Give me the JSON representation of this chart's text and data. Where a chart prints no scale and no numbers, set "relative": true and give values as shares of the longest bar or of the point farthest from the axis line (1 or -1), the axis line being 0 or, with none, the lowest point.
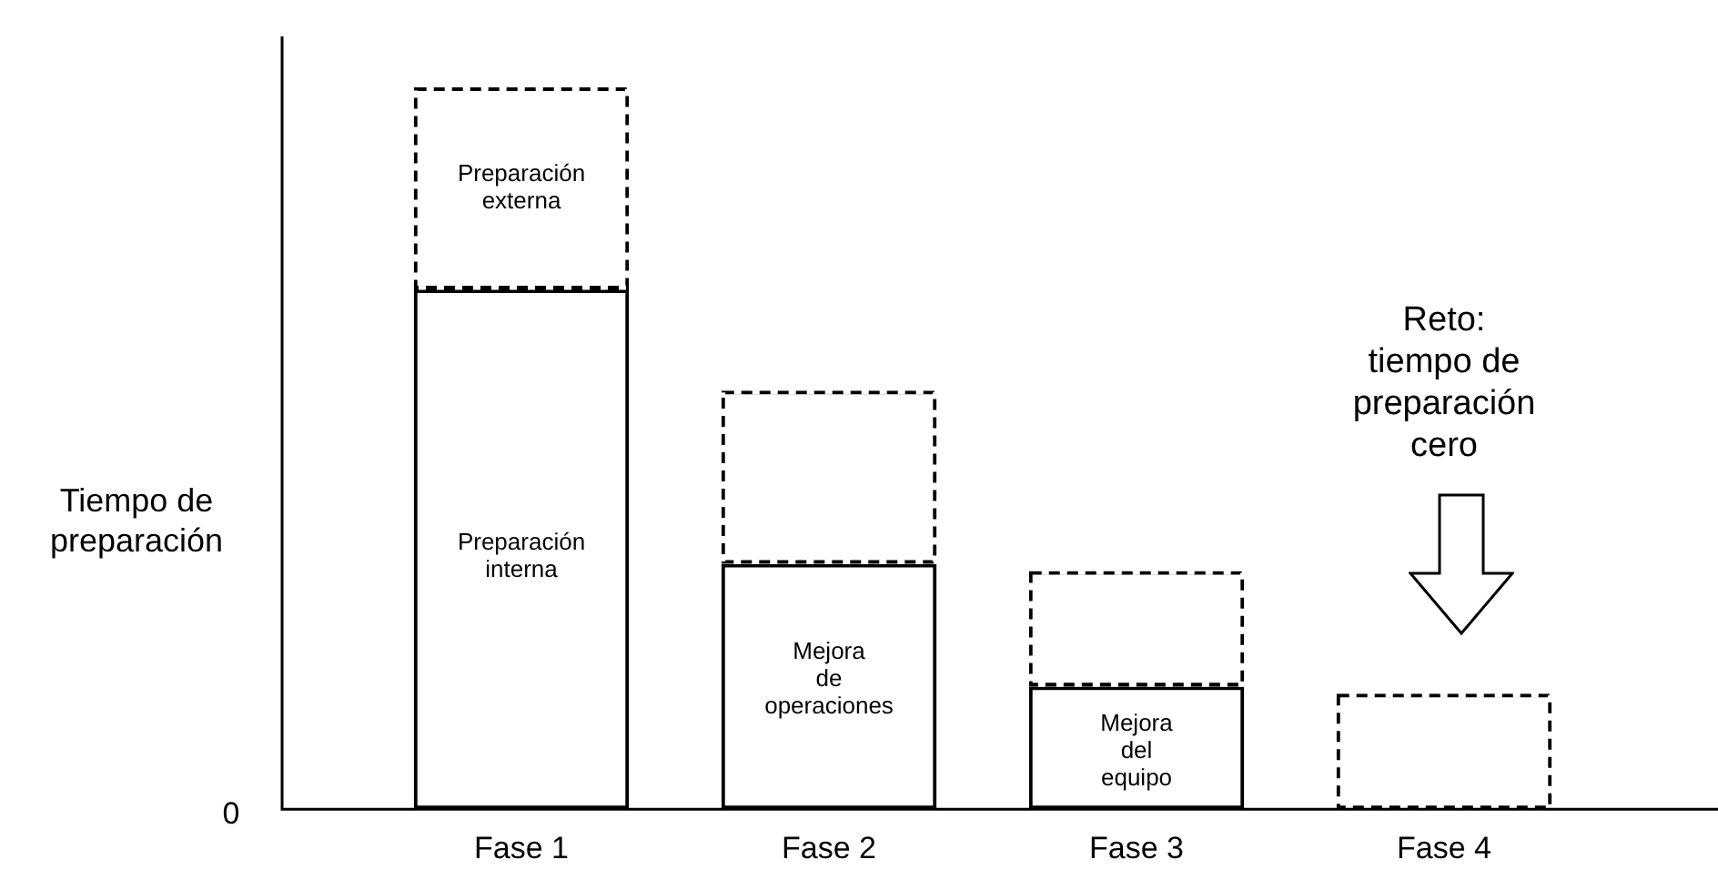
{
  "chart_data": {
    "type": "bar",
    "stacked": true,
    "relative": true,
    "ylabel": "Tiempo de\npreparación",
    "categories": [
      "Fase 1",
      "Fase 2",
      "Fase 3",
      "Fase 4"
    ],
    "series": [
      {
        "color": "#000000",
        "line_style": "solid",
        "values": [
          0.72,
          0.34,
          0.17,
          0
        ]
      },
      {
        "color": "#000000",
        "line_style": "dashed",
        "values": [
          0.28,
          0.24,
          0.16,
          0.16
        ]
      }
    ],
    "annotations": [
      "0",
      "Preparación\nexterna",
      "Preparación\ninterna",
      "Mejora\nde\noperaciones",
      "Mejora\ndel\nequipo",
      "Reto:\ntiempo de\npreparación\ncero"
    ],
    "grid": false,
    "legend": false
  }
}
